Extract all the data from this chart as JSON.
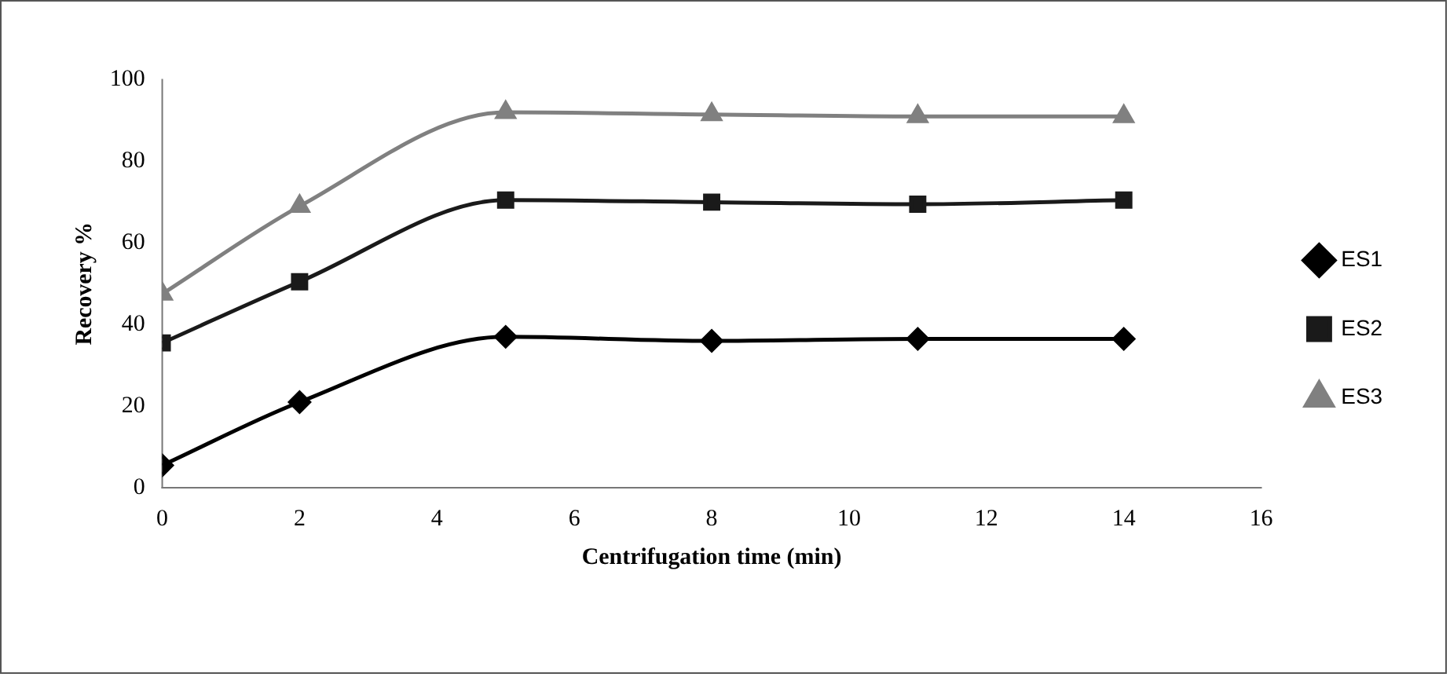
{
  "chart_data": {
    "type": "line",
    "xlabel": "Centrifugation time (min)",
    "ylabel": "Recovery %",
    "x": [
      0,
      2,
      5,
      8,
      11,
      14
    ],
    "xlim": [
      0,
      16
    ],
    "xticks": [
      0,
      2,
      4,
      6,
      8,
      10,
      12,
      14,
      16
    ],
    "ylim": [
      0,
      100
    ],
    "yticks": [
      0,
      20,
      40,
      60,
      80,
      100
    ],
    "grid": false,
    "legend": "right",
    "series": [
      {
        "name": "ES1",
        "color": "#000000",
        "marker": "diamond",
        "values": [
          5.5,
          21,
          37,
          36,
          36.5,
          36.5
        ]
      },
      {
        "name": "ES2",
        "color": "#1a1a1a",
        "marker": "square",
        "values": [
          35.5,
          50.5,
          70.5,
          70,
          69.5,
          70.5
        ]
      },
      {
        "name": "ES3",
        "color": "#808080",
        "marker": "triangle",
        "values": [
          47.5,
          69,
          92,
          91.5,
          91,
          91
        ]
      }
    ]
  }
}
